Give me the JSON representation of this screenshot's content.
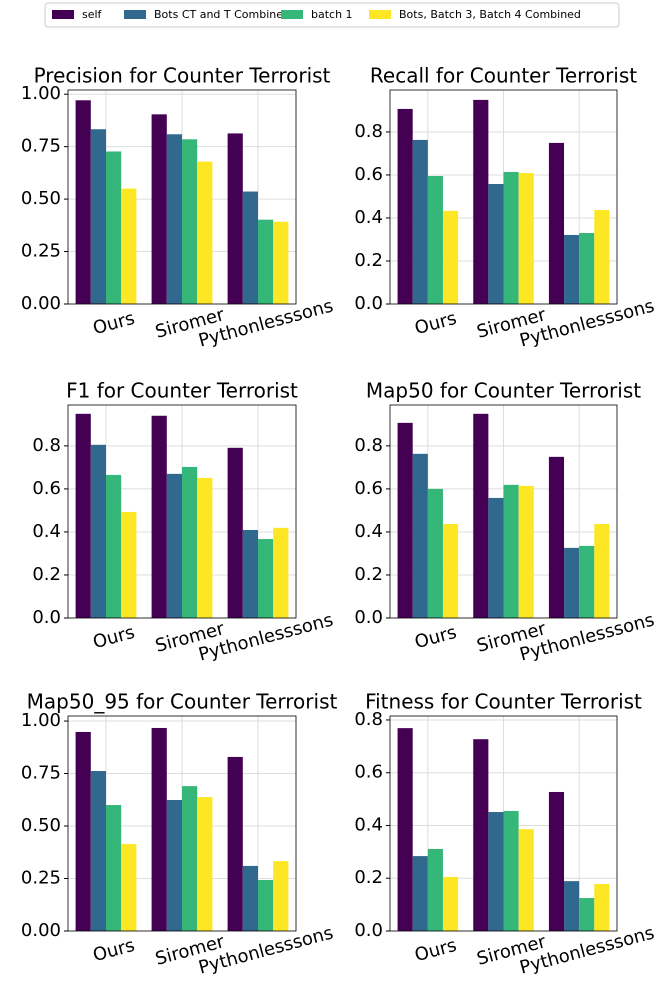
{
  "legend": [
    {
      "name": "self",
      "color": "#440154"
    },
    {
      "name": "Bots CT and T Combined",
      "color": "#31688e"
    },
    {
      "name": "batch 1",
      "color": "#35b779"
    },
    {
      "name": "Bots, Batch 3, Batch 4 Combined",
      "color": "#fde725"
    }
  ],
  "chart_data": [
    {
      "type": "bar",
      "title": "Precision for Counter Terrorist",
      "categories": [
        "Ours",
        "Siromer",
        "Pythonlesssons"
      ],
      "series": [
        {
          "values": [
            0.971,
            0.904,
            0.813
          ]
        },
        {
          "values": [
            0.833,
            0.809,
            0.536
          ]
        },
        {
          "values": [
            0.727,
            0.785,
            0.402
          ]
        },
        {
          "values": [
            0.55,
            0.679,
            0.392
          ]
        }
      ],
      "ylim": [
        0,
        1.02
      ],
      "yticks": [
        {
          "value": 0,
          "label": "0.00"
        },
        {
          "value": 0.25,
          "label": "0.25"
        },
        {
          "value": 0.5,
          "label": "0.50"
        },
        {
          "value": 0.75,
          "label": "0.75"
        },
        {
          "value": 1,
          "label": "1.00"
        }
      ],
      "grid": true
    },
    {
      "type": "bar",
      "title": "Recall for Counter Terrorist",
      "categories": [
        "Ours",
        "Siromer",
        "Pythonlesssons"
      ],
      "series": [
        {
          "values": [
            0.907,
            0.949,
            0.749
          ]
        },
        {
          "values": [
            0.763,
            0.558,
            0.321
          ]
        },
        {
          "values": [
            0.595,
            0.614,
            0.33
          ]
        },
        {
          "values": [
            0.433,
            0.609,
            0.437
          ]
        }
      ],
      "ylim": [
        0,
        0.995
      ],
      "yticks": [
        {
          "value": 0,
          "label": "0.0"
        },
        0.2,
        0.4,
        0.6,
        0.8
      ],
      "grid": true
    },
    {
      "type": "bar",
      "title": "F1 for Counter Terrorist",
      "categories": [
        "Ours",
        "Siromer",
        "Pythonlesssons"
      ],
      "series": [
        {
          "values": [
            0.949,
            0.94,
            0.791
          ]
        },
        {
          "values": [
            0.805,
            0.67,
            0.409
          ]
        },
        {
          "values": [
            0.665,
            0.702,
            0.367
          ]
        },
        {
          "values": [
            0.493,
            0.651,
            0.419
          ]
        }
      ],
      "ylim": [
        0,
        0.99
      ],
      "yticks": [
        {
          "value": 0,
          "label": "0.0"
        },
        0.2,
        0.4,
        0.6,
        0.8
      ],
      "grid": true
    },
    {
      "type": "bar",
      "title": "Map50 for Counter Terrorist",
      "categories": [
        "Ours",
        "Siromer",
        "Pythonlesssons"
      ],
      "series": [
        {
          "values": [
            0.907,
            0.949,
            0.749
          ]
        },
        {
          "values": [
            0.763,
            0.558,
            0.326
          ]
        },
        {
          "values": [
            0.6,
            0.619,
            0.335
          ]
        },
        {
          "values": [
            0.437,
            0.614,
            0.437
          ]
        }
      ],
      "ylim": [
        0,
        0.99
      ],
      "yticks": [
        {
          "value": 0,
          "label": "0.0"
        },
        0.2,
        0.4,
        0.6,
        0.8
      ],
      "grid": true
    },
    {
      "type": "bar",
      "title": "Map50_95 for Counter Terrorist",
      "categories": [
        "Ours",
        "Siromer",
        "Pythonlesssons"
      ],
      "series": [
        {
          "values": [
            0.948,
            0.967,
            0.829
          ]
        },
        {
          "values": [
            0.762,
            0.624,
            0.31
          ]
        },
        {
          "values": [
            0.6,
            0.69,
            0.243
          ]
        },
        {
          "values": [
            0.414,
            0.638,
            0.333
          ]
        }
      ],
      "ylim": [
        0,
        1.024
      ],
      "yticks": [
        {
          "value": 0,
          "label": "0.00"
        },
        {
          "value": 0.25,
          "label": "0.25"
        },
        {
          "value": 0.5,
          "label": "0.50"
        },
        {
          "value": 0.75,
          "label": "0.75"
        },
        {
          "value": 1,
          "label": "1.00"
        }
      ],
      "grid": true
    },
    {
      "type": "bar",
      "title": "Fitness for Counter Terrorist",
      "categories": [
        "Ours",
        "Siromer",
        "Pythonlesssons"
      ],
      "series": [
        {
          "values": [
            0.769,
            0.727,
            0.527
          ]
        },
        {
          "values": [
            0.284,
            0.451,
            0.189
          ]
        },
        {
          "values": [
            0.311,
            0.455,
            0.125
          ]
        },
        {
          "values": [
            0.205,
            0.386,
            0.178
          ]
        }
      ],
      "ylim": [
        0,
        0.815
      ],
      "yticks": [
        {
          "value": 0,
          "label": "0.0"
        },
        0.2,
        0.4,
        0.6,
        0.8
      ],
      "grid": true
    }
  ]
}
